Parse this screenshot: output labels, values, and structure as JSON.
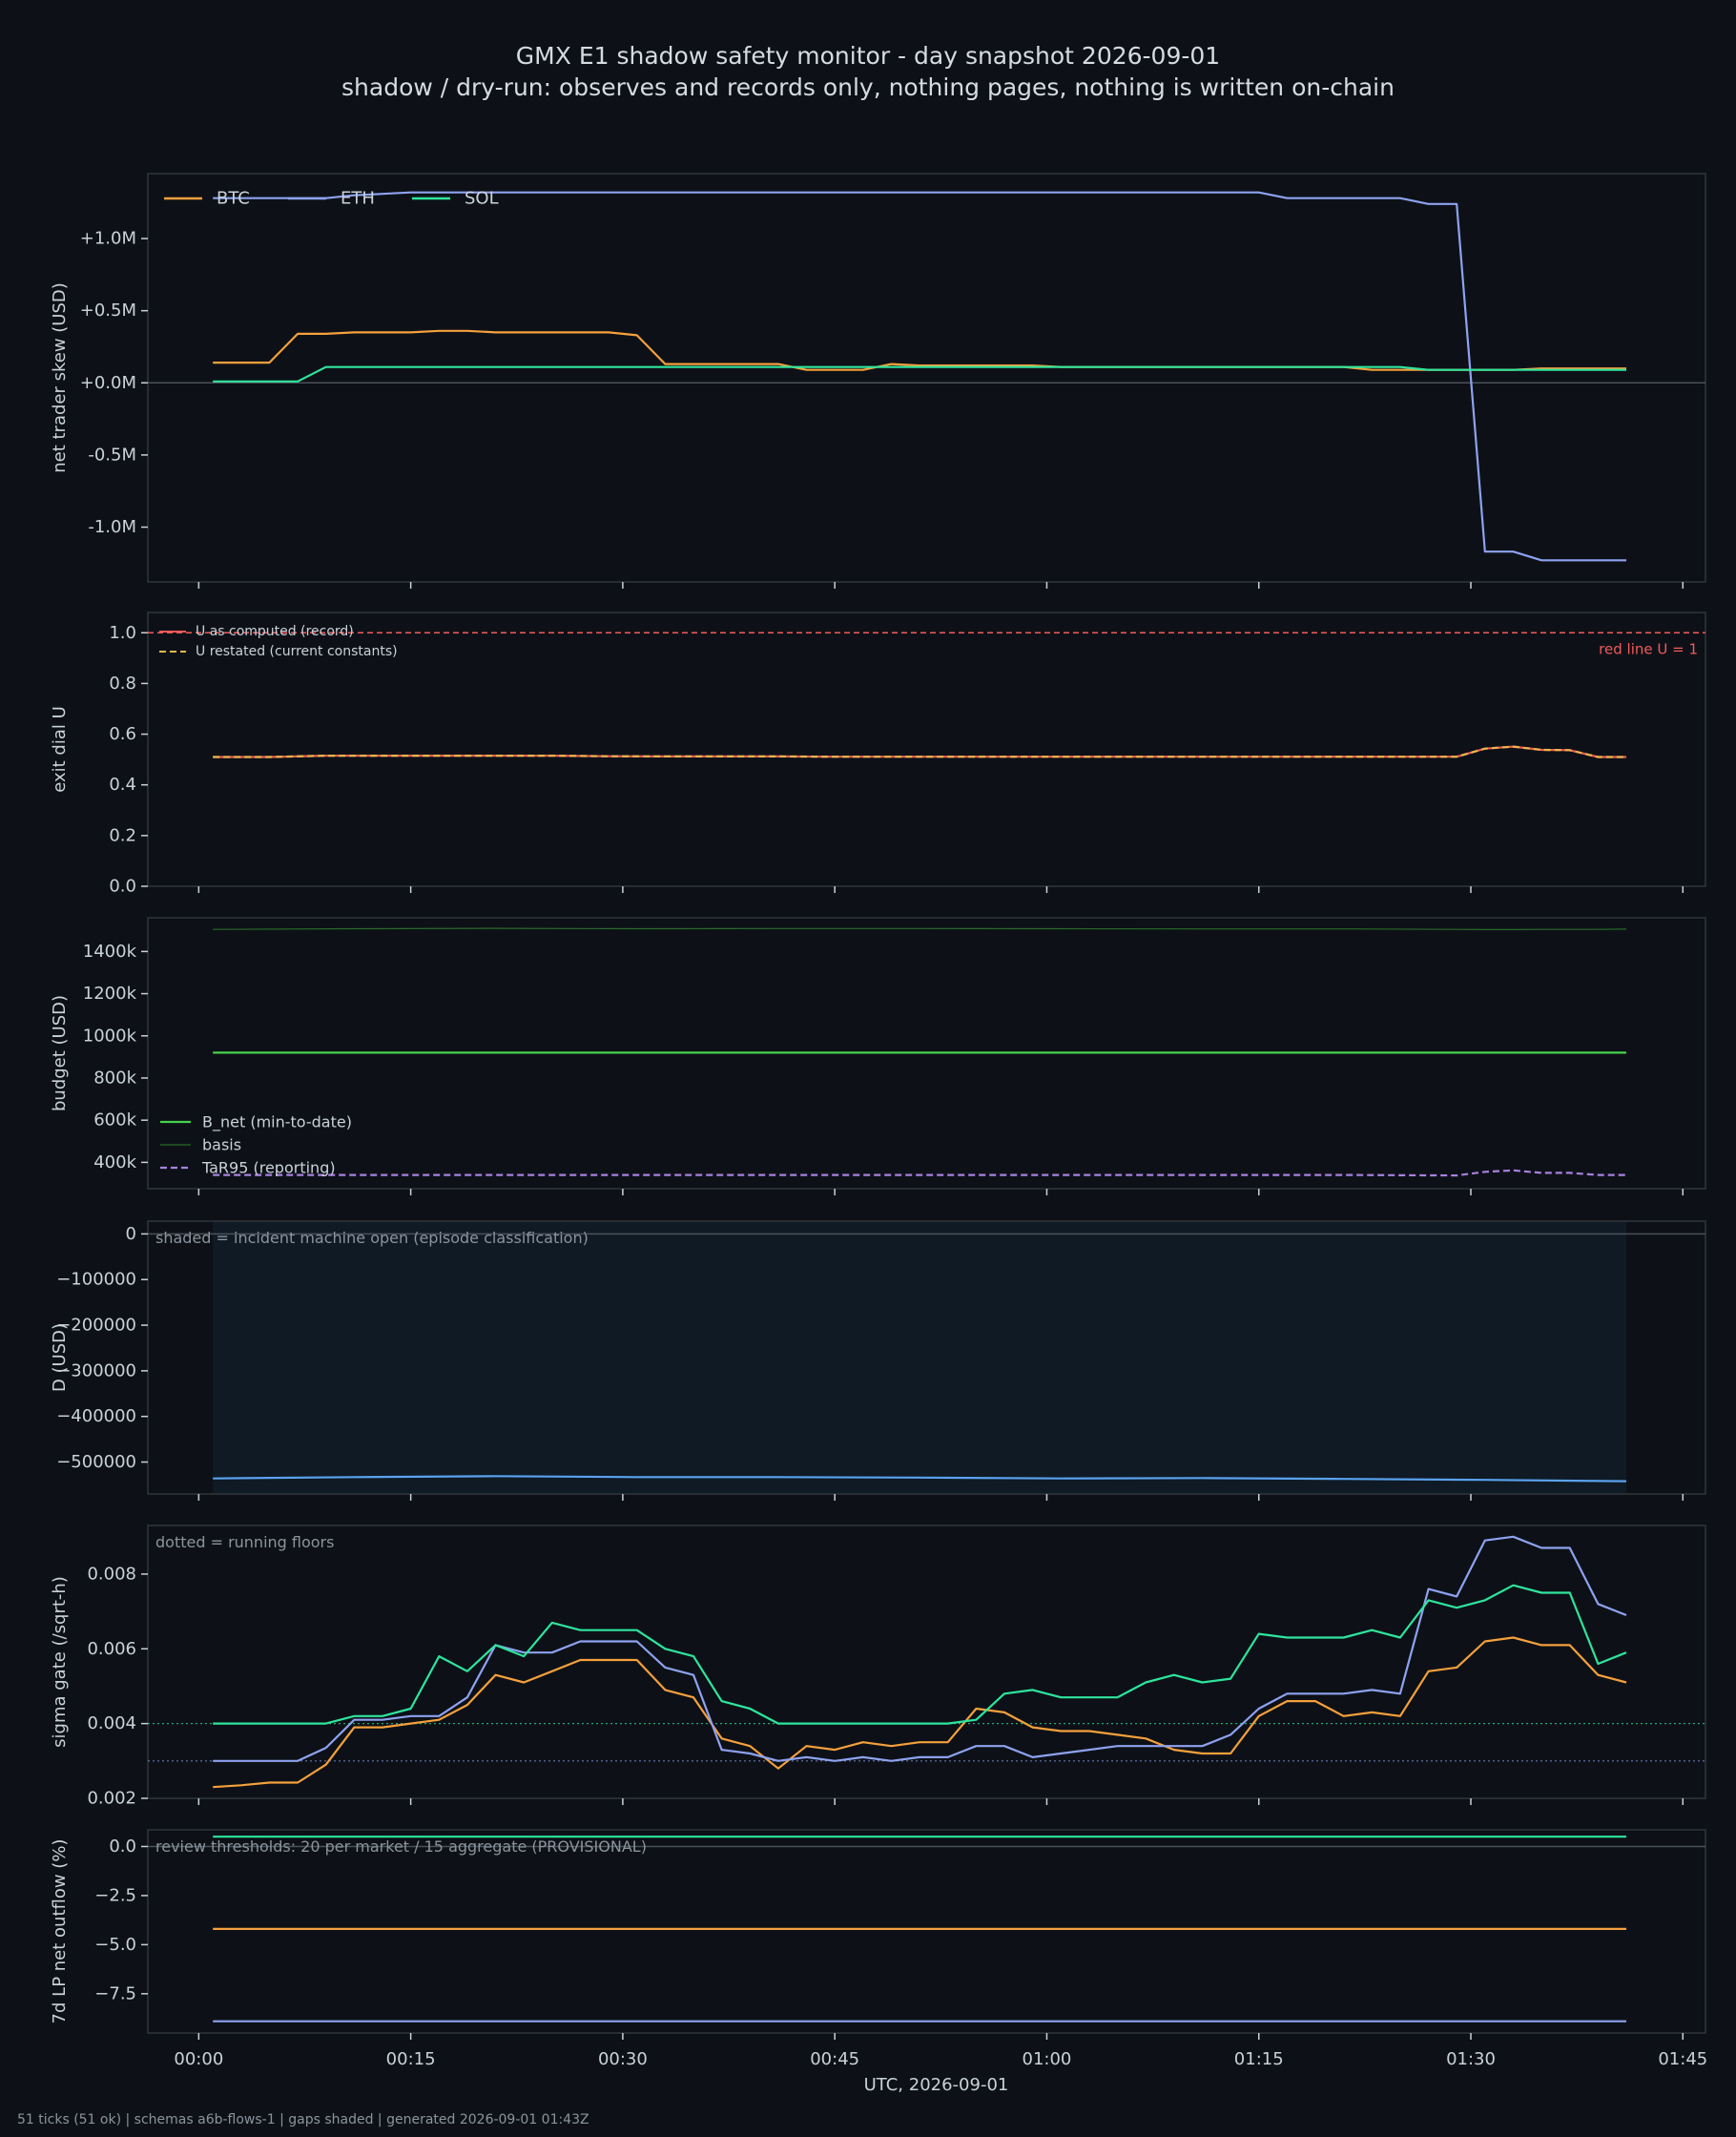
{
  "title": "GMX E1 shadow safety monitor - day snapshot 2026-09-01",
  "subtitle": "shadow / dry-run: observes and records only, nothing pages, nothing is written on-chain",
  "footer": "51 ticks (51 ok) | schemas a6b-flows-1 | gaps shaded | generated 2026-09-01 01:43Z",
  "xlabel": "UTC, 2026-09-01",
  "x_ticks": [
    "00:00",
    "00:15",
    "00:30",
    "00:45",
    "01:00",
    "01:15",
    "01:30",
    "01:45"
  ],
  "x_tick_minutes": [
    0,
    15,
    30,
    45,
    60,
    75,
    90,
    105
  ],
  "x_range_minutes": [
    -3.6,
    106.6
  ],
  "colors": {
    "background": "#0d1117",
    "frame": "#30363d",
    "text": "#c9d1d9",
    "btc": "#f5a03c",
    "eth": "#8ea2f0",
    "sol": "#2ee59d",
    "u_record": "#f25a5a",
    "u_restated": "#e8b84a",
    "bnet": "#46d24c",
    "basis": "#2a6a2a",
    "tar95": "#a881e0",
    "d_line": "#5aa2f0",
    "shade": "#0f1a24"
  },
  "chart_data": [
    {
      "type": "line",
      "ylabel": "net trader skew (USD)",
      "y_ticks": [
        1.0,
        0.5,
        0.0,
        -0.5,
        -1.0
      ],
      "y_tick_labels": [
        "+1.0M",
        "+0.5M",
        "+0.0M",
        "-0.5M",
        "-1.0M"
      ],
      "ylim": [
        -1.38,
        1.45
      ],
      "zero_line": 0,
      "legend": "top-left",
      "x_minutes": [
        1,
        5,
        7,
        9,
        11,
        13,
        15,
        17,
        19,
        21,
        23,
        25,
        27,
        29,
        31,
        33,
        35,
        37,
        39,
        41,
        43,
        45,
        47,
        49,
        51,
        53,
        55,
        57,
        59,
        61,
        63,
        65,
        67,
        69,
        71,
        73,
        75,
        77,
        79,
        81,
        83,
        85,
        87,
        89,
        91,
        93,
        95,
        97,
        99,
        101
      ],
      "series": [
        {
          "name": "BTC",
          "color": "#f5a03c",
          "values": [
            0.14,
            0.14,
            0.34,
            0.34,
            0.35,
            0.35,
            0.35,
            0.36,
            0.36,
            0.35,
            0.35,
            0.35,
            0.35,
            0.35,
            0.33,
            0.13,
            0.13,
            0.13,
            0.13,
            0.13,
            0.09,
            0.09,
            0.09,
            0.13,
            0.12,
            0.12,
            0.12,
            0.12,
            0.12,
            0.11,
            0.11,
            0.11,
            0.11,
            0.11,
            0.11,
            0.11,
            0.11,
            0.11,
            0.11,
            0.11,
            0.09,
            0.09,
            0.09,
            0.09,
            0.09,
            0.09,
            0.1,
            0.1,
            0.1,
            0.1
          ]
        },
        {
          "name": "ETH",
          "color": "#8ea2f0",
          "values": [
            1.28,
            1.28,
            1.28,
            1.28,
            1.3,
            1.31,
            1.32,
            1.32,
            1.32,
            1.32,
            1.32,
            1.32,
            1.32,
            1.32,
            1.32,
            1.32,
            1.32,
            1.32,
            1.32,
            1.32,
            1.32,
            1.32,
            1.32,
            1.32,
            1.32,
            1.32,
            1.32,
            1.32,
            1.32,
            1.32,
            1.32,
            1.32,
            1.32,
            1.32,
            1.32,
            1.32,
            1.32,
            1.28,
            1.28,
            1.28,
            1.28,
            1.28,
            1.24,
            1.24,
            -1.17,
            -1.17,
            -1.23,
            -1.23,
            -1.23,
            -1.23
          ]
        },
        {
          "name": "SOL",
          "color": "#2ee59d",
          "values": [
            0.01,
            0.01,
            0.01,
            0.11,
            0.11,
            0.11,
            0.11,
            0.11,
            0.11,
            0.11,
            0.11,
            0.11,
            0.11,
            0.11,
            0.11,
            0.11,
            0.11,
            0.11,
            0.11,
            0.11,
            0.11,
            0.11,
            0.11,
            0.11,
            0.11,
            0.11,
            0.11,
            0.11,
            0.11,
            0.11,
            0.11,
            0.11,
            0.11,
            0.11,
            0.11,
            0.11,
            0.11,
            0.11,
            0.11,
            0.11,
            0.11,
            0.11,
            0.09,
            0.09,
            0.09,
            0.09,
            0.09,
            0.09,
            0.09,
            0.09
          ]
        }
      ]
    },
    {
      "type": "line",
      "ylabel": "exit dial U",
      "y_ticks": [
        1.0,
        0.8,
        0.6,
        0.4,
        0.2,
        0.0
      ],
      "y_tick_labels": [
        "1.0",
        "0.8",
        "0.6",
        "0.4",
        "0.2",
        "0.0"
      ],
      "ylim": [
        0.0,
        1.08
      ],
      "legend": "top-left",
      "reference_line": {
        "value": 1.0,
        "label": "red line U = 1",
        "color": "#f25a5a"
      },
      "x_minutes": [
        1,
        5,
        9,
        13,
        17,
        21,
        25,
        29,
        33,
        37,
        41,
        45,
        49,
        53,
        57,
        61,
        65,
        69,
        73,
        77,
        81,
        85,
        89,
        91,
        93,
        95,
        97,
        99,
        101
      ],
      "series": [
        {
          "name": "U as computed (record)",
          "color": "#f25a5a",
          "style": "solid",
          "values": [
            0.51,
            0.51,
            0.515,
            0.515,
            0.515,
            0.515,
            0.515,
            0.513,
            0.512,
            0.512,
            0.512,
            0.511,
            0.511,
            0.511,
            0.511,
            0.511,
            0.511,
            0.511,
            0.511,
            0.511,
            0.511,
            0.511,
            0.511,
            0.543,
            0.551,
            0.538,
            0.537,
            0.51,
            0.51
          ]
        },
        {
          "name": "U restated (current constants)",
          "color": "#e8b84a",
          "style": "dashed",
          "values": [
            0.51,
            0.51,
            0.515,
            0.515,
            0.515,
            0.515,
            0.515,
            0.513,
            0.512,
            0.512,
            0.512,
            0.511,
            0.511,
            0.511,
            0.511,
            0.511,
            0.511,
            0.511,
            0.511,
            0.511,
            0.511,
            0.511,
            0.511,
            0.543,
            0.551,
            0.538,
            0.537,
            0.51,
            0.51
          ]
        }
      ]
    },
    {
      "type": "line",
      "ylabel": "budget (USD)",
      "y_ticks": [
        1400,
        1200,
        1000,
        800,
        600,
        400
      ],
      "y_tick_labels": [
        "1400k",
        "1200k",
        "1000k",
        "800k",
        "600k",
        "400k"
      ],
      "ylim": [
        275,
        1560
      ],
      "legend": "lower-left",
      "x_minutes": [
        1,
        11,
        21,
        31,
        41,
        51,
        61,
        71,
        81,
        89,
        91,
        93,
        95,
        97,
        99,
        101
      ],
      "series": [
        {
          "name": "B_net (min-to-date)",
          "color": "#46d24c",
          "style": "solid",
          "values": [
            920,
            920,
            920,
            920,
            920,
            920,
            920,
            920,
            920,
            920,
            920,
            920,
            920,
            920,
            920,
            920
          ]
        },
        {
          "name": "basis",
          "color": "#2a6a2a",
          "style": "thin",
          "values": [
            1505,
            1508,
            1510,
            1508,
            1509,
            1509,
            1508,
            1507,
            1507,
            1505,
            1504,
            1504,
            1505,
            1505,
            1505,
            1506
          ]
        },
        {
          "name": "TaR95 (reporting)",
          "color": "#a881e0",
          "style": "dashed",
          "values": [
            340,
            340,
            340,
            340,
            340,
            340,
            340,
            340,
            340,
            338,
            355,
            362,
            350,
            350,
            340,
            340
          ]
        }
      ]
    },
    {
      "type": "line",
      "ylabel": "D (USD)",
      "y_ticks": [
        0,
        -100000,
        -200000,
        -300000,
        -400000,
        -500000
      ],
      "y_tick_labels": [
        "0",
        "−100000",
        "−200000",
        "−300000",
        "−400000",
        "−500000"
      ],
      "ylim": [
        -570000,
        28000
      ],
      "zero_line": 0,
      "annotation": "shaded = incident machine open (episode classification)",
      "shaded_span_minutes": [
        1,
        101
      ],
      "x_minutes": [
        1,
        11,
        21,
        31,
        41,
        51,
        61,
        71,
        81,
        91,
        101
      ],
      "series": [
        {
          "name": "D",
          "color": "#5aa2f0",
          "values": [
            -536000,
            -533000,
            -531000,
            -533000,
            -533000,
            -534000,
            -536000,
            -535000,
            -537000,
            -539000,
            -542000
          ]
        }
      ]
    },
    {
      "type": "line",
      "ylabel": "sigma gate (/sqrt-h)",
      "y_ticks": [
        0.008,
        0.006,
        0.004,
        0.002
      ],
      "y_tick_labels": [
        "0.008",
        "0.006",
        "0.004",
        "0.002"
      ],
      "ylim": [
        0.002,
        0.0093
      ],
      "annotation": "dotted = running floors",
      "floors": [
        {
          "value": 0.004,
          "color": "#2ee59d"
        },
        {
          "value": 0.003,
          "color": "#8ea2f0"
        }
      ],
      "x_minutes": [
        1,
        3,
        5,
        7,
        9,
        11,
        13,
        15,
        17,
        19,
        21,
        23,
        25,
        27,
        29,
        31,
        33,
        35,
        37,
        39,
        41,
        43,
        45,
        47,
        49,
        51,
        53,
        55,
        57,
        59,
        61,
        63,
        65,
        67,
        69,
        71,
        73,
        75,
        77,
        79,
        81,
        83,
        85,
        87,
        89,
        91,
        93,
        95,
        97,
        99,
        101
      ],
      "series": [
        {
          "name": "BTC",
          "color": "#f5a03c",
          "values": [
            0.0023,
            0.00235,
            0.00242,
            0.00242,
            0.0029,
            0.0039,
            0.0039,
            0.004,
            0.0041,
            0.0045,
            0.0053,
            0.0051,
            0.0054,
            0.0057,
            0.0057,
            0.0057,
            0.0049,
            0.0047,
            0.0036,
            0.0034,
            0.0028,
            0.0034,
            0.0033,
            0.0035,
            0.0034,
            0.0035,
            0.0035,
            0.0044,
            0.0043,
            0.0039,
            0.0038,
            0.0038,
            0.0037,
            0.0036,
            0.0033,
            0.0032,
            0.0032,
            0.0042,
            0.0046,
            0.0046,
            0.0042,
            0.0043,
            0.0042,
            0.0054,
            0.0055,
            0.0062,
            0.0063,
            0.0061,
            0.0061,
            0.0053,
            0.0051
          ]
        },
        {
          "name": "ETH",
          "color": "#8ea2f0",
          "values": [
            0.003,
            0.003,
            0.003,
            0.003,
            0.00335,
            0.0041,
            0.0041,
            0.0042,
            0.0042,
            0.0047,
            0.0061,
            0.0059,
            0.0059,
            0.0062,
            0.0062,
            0.0062,
            0.0055,
            0.0053,
            0.0033,
            0.0032,
            0.003,
            0.0031,
            0.003,
            0.0031,
            0.003,
            0.0031,
            0.0031,
            0.0034,
            0.0034,
            0.0031,
            0.0032,
            0.0033,
            0.0034,
            0.0034,
            0.0034,
            0.0034,
            0.0037,
            0.0044,
            0.0048,
            0.0048,
            0.0048,
            0.0049,
            0.0048,
            0.0076,
            0.0074,
            0.0089,
            0.009,
            0.0087,
            0.0087,
            0.0072,
            0.0069
          ]
        },
        {
          "name": "SOL",
          "color": "#2ee59d",
          "values": [
            0.004,
            0.004,
            0.004,
            0.004,
            0.004,
            0.0042,
            0.0042,
            0.0044,
            0.0058,
            0.0054,
            0.0061,
            0.0058,
            0.0067,
            0.0065,
            0.0065,
            0.0065,
            0.006,
            0.0058,
            0.0046,
            0.0044,
            0.004,
            0.004,
            0.004,
            0.004,
            0.004,
            0.004,
            0.004,
            0.0041,
            0.0048,
            0.0049,
            0.0047,
            0.0047,
            0.0047,
            0.0051,
            0.0053,
            0.0051,
            0.0052,
            0.0064,
            0.0063,
            0.0063,
            0.0063,
            0.0065,
            0.0063,
            0.0073,
            0.0071,
            0.0073,
            0.0077,
            0.0075,
            0.0075,
            0.0056,
            0.0059
          ]
        }
      ]
    },
    {
      "type": "line",
      "ylabel": "7d LP net outflow (%)",
      "y_ticks": [
        0.0,
        -2.5,
        -5.0,
        -7.5
      ],
      "y_tick_labels": [
        "0.0",
        "−2.5",
        "−5.0",
        "−7.5"
      ],
      "ylim": [
        -9.5,
        0.85
      ],
      "zero_line": 0,
      "annotation": "review thresholds: 20 per market / 15 aggregate (PROVISIONAL)",
      "x_minutes": [
        1,
        101
      ],
      "series": [
        {
          "name": "SOL",
          "color": "#2ee59d",
          "values": [
            0.5,
            0.5
          ]
        },
        {
          "name": "BTC",
          "color": "#f5a03c",
          "values": [
            -4.2,
            -4.2
          ]
        },
        {
          "name": "ETH",
          "color": "#8ea2f0",
          "values": [
            -8.9,
            -8.9
          ]
        }
      ]
    }
  ]
}
